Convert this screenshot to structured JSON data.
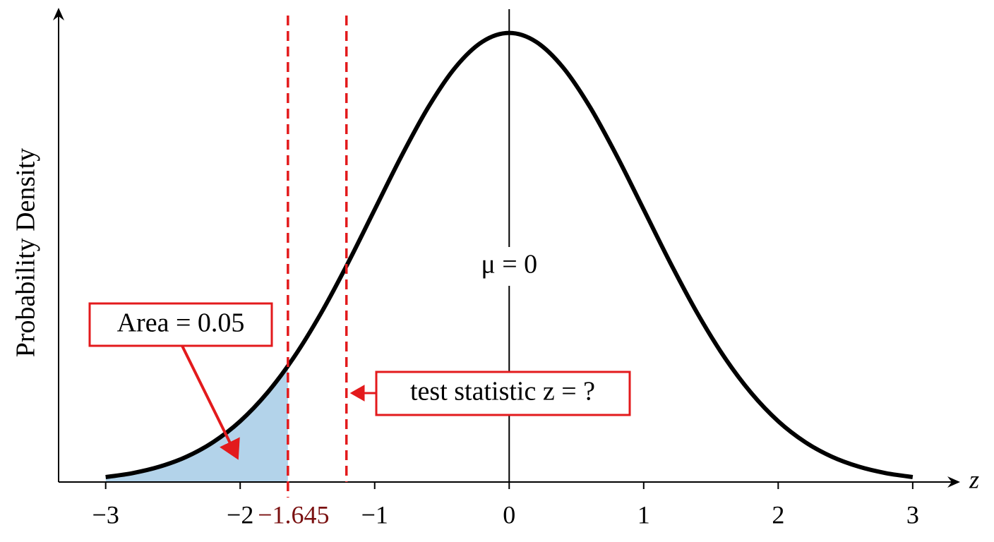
{
  "chart_data": {
    "type": "line",
    "xlabel": "z",
    "ylabel": "Probability Density",
    "x": [
      -3,
      -2.8,
      -2.6,
      -2.4,
      -2.2,
      -2,
      -1.8,
      -1.6,
      -1.4,
      -1.2,
      -1,
      -0.8,
      -0.6,
      -0.4,
      -0.2,
      0,
      0.2,
      0.4,
      0.6,
      0.8,
      1,
      1.2,
      1.4,
      1.6,
      1.8,
      2,
      2.2,
      2.4,
      2.6,
      2.8,
      3
    ],
    "values": [
      0.0044,
      0.0079,
      0.0136,
      0.0224,
      0.0355,
      0.054,
      0.079,
      0.1109,
      0.1497,
      0.1942,
      0.242,
      0.2897,
      0.3332,
      0.3683,
      0.391,
      0.3989,
      0.391,
      0.3683,
      0.3332,
      0.2897,
      0.242,
      0.1942,
      0.1497,
      0.1109,
      0.079,
      0.054,
      0.0355,
      0.0224,
      0.0136,
      0.0079,
      0.0044
    ],
    "color": "#000000",
    "xlim": [
      -3.35,
      3.3
    ],
    "xticks": [
      {
        "value": -3,
        "label": "−3"
      },
      {
        "value": -2,
        "label": "−2"
      },
      {
        "value": -1,
        "label": "−1"
      },
      0,
      1,
      2,
      3
    ],
    "ylim": [
      0,
      0.42
    ],
    "mean": {
      "value": 0,
      "label": "μ = 0"
    },
    "critical_value": {
      "value": -1.645,
      "label": "−1.645",
      "color": "#e31a1c"
    },
    "shaded_area": {
      "value": 0.05,
      "label": "Area = 0.05",
      "color": "#b3d3ea"
    },
    "test_statistic": {
      "value": -1.21,
      "label": "test statistic z = ?"
    }
  }
}
